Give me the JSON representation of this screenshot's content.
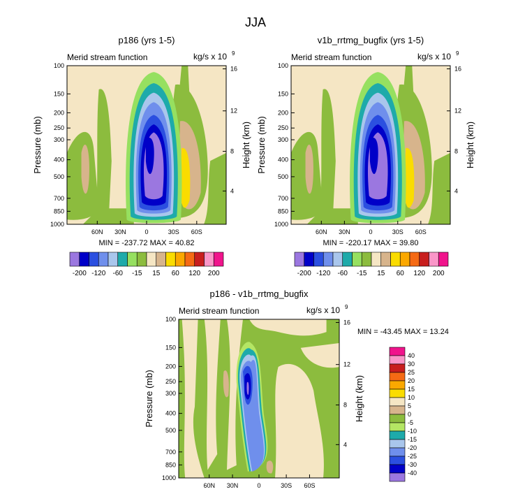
{
  "figure_title": "JJA",
  "chart_data": [
    {
      "type": "heatmap",
      "id": "p186",
      "title": "p186 (yrs 1-5)",
      "left_label": "Merid stream function",
      "units_base": "kg/s x 10",
      "units_exp": "9",
      "ylabel": "Pressure (mb)",
      "y2label": "Height (km)",
      "y_ticks": [
        "100",
        "150",
        "200",
        "250",
        "300",
        "400",
        "500",
        "700",
        "850",
        "1000"
      ],
      "y2_ticks": [
        "16",
        "12",
        "8",
        "4"
      ],
      "x_ticks": [
        "60N",
        "30N",
        "0",
        "30S",
        "60S"
      ],
      "min_max_text": "MIN = -237.72   MAX = 40.82",
      "stats": {
        "min": -237.72,
        "max": 40.82
      },
      "colorbar_labels": [
        "-200",
        "-120",
        "-60",
        "-15",
        "15",
        "60",
        "120",
        "200"
      ]
    },
    {
      "type": "heatmap",
      "id": "v1b",
      "title": "v1b_rrtmg_bugfix (yrs 1-5)",
      "left_label": "Merid stream function",
      "units_base": "kg/s x 10",
      "units_exp": "9",
      "ylabel": "Pressure (mb)",
      "y2label": "Height (km)",
      "y_ticks": [
        "100",
        "150",
        "200",
        "250",
        "300",
        "400",
        "500",
        "700",
        "850",
        "1000"
      ],
      "y2_ticks": [
        "16",
        "12",
        "8",
        "4"
      ],
      "x_ticks": [
        "60N",
        "30N",
        "0",
        "30S",
        "60S"
      ],
      "min_max_text": "MIN = -220.17   MAX = 39.80",
      "stats": {
        "min": -220.17,
        "max": 39.8
      },
      "colorbar_labels": [
        "-200",
        "-120",
        "-60",
        "-15",
        "15",
        "60",
        "120",
        "200"
      ]
    },
    {
      "type": "heatmap",
      "id": "diff",
      "title": "p186 - v1b_rrtmg_bugfix",
      "left_label": "Merid stream function",
      "units_base": "kg/s x 10",
      "units_exp": "9",
      "ylabel": "Pressure (mb)",
      "y2label": "Height (km)",
      "y_ticks": [
        "100",
        "150",
        "200",
        "250",
        "300",
        "400",
        "500",
        "700",
        "850",
        "1000"
      ],
      "y2_ticks": [
        "16",
        "12",
        "8",
        "4"
      ],
      "x_ticks": [
        "60N",
        "30N",
        "0",
        "30S",
        "60S"
      ],
      "min_max_text": "MIN = -43.45   MAX =  13.24",
      "stats": {
        "min": -43.45,
        "max": 13.24
      },
      "colorbar_labels": [
        "40",
        "30",
        "25",
        "20",
        "15",
        "10",
        "5",
        "0",
        "-5",
        "-10",
        "-15",
        "-20",
        "-25",
        "-30",
        "-40"
      ]
    }
  ],
  "colors": {
    "abs_palette": [
      "#9b77e0",
      "#0000c8",
      "#2b4fe0",
      "#6f8fec",
      "#a9c6ec",
      "#1eaaaa",
      "#96e060",
      "#8cbc3e",
      "#f5e6c4",
      "#d7b48c",
      "#fadc00",
      "#fba800",
      "#f56a14",
      "#c81e1e",
      "#fa96c8",
      "#f0148c"
    ],
    "diff_palette": [
      "#f0148c",
      "#fa96c8",
      "#c81e1e",
      "#f56a14",
      "#fba800",
      "#fadc00",
      "#f5e6c4",
      "#d7b48c",
      "#8cbc3e",
      "#b4e664",
      "#1eaaaa",
      "#a9c6ec",
      "#6f8fec",
      "#2b4fe0",
      "#0000c8",
      "#9b77e0"
    ]
  }
}
